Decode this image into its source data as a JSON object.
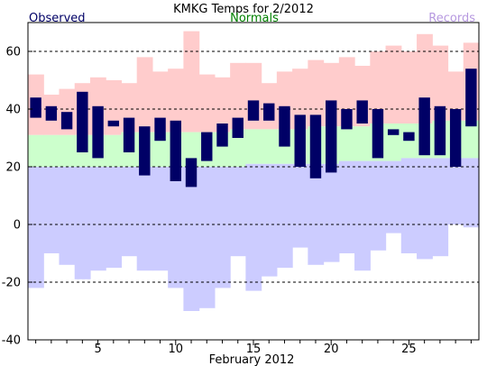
{
  "chart_data": {
    "type": "bar",
    "title": "KMKG Temps for 2/2012",
    "xlabel": "February 2012",
    "ylabel": "",
    "ylim": [
      -40,
      70
    ],
    "xlim": [
      0.5,
      29.5
    ],
    "yticks": [
      -40,
      -20,
      0,
      20,
      40,
      60
    ],
    "xticks": [
      5,
      10,
      15,
      20,
      25
    ],
    "grid": "dashed horizontal at 20-degree intervals",
    "legend": [
      {
        "name": "Observed",
        "color": "#000066",
        "placement": "top-left"
      },
      {
        "name": "Normals",
        "color": "#008000",
        "placement": "top-center"
      },
      {
        "name": "Records",
        "color": "#b799e0",
        "placement": "top-right"
      }
    ],
    "colors": {
      "observed": "#000066",
      "normals": "#ccffcc",
      "record_high_band": "#ffcccc",
      "record_low_band": "#ccccff",
      "grid": "#000000"
    },
    "days": [
      1,
      2,
      3,
      4,
      5,
      6,
      7,
      8,
      9,
      10,
      11,
      12,
      13,
      14,
      15,
      16,
      17,
      18,
      19,
      20,
      21,
      22,
      23,
      24,
      25,
      26,
      27,
      28,
      29
    ],
    "series": [
      {
        "name": "Observed",
        "kind": "range",
        "high": [
          44,
          41,
          39,
          46,
          41,
          36,
          37,
          34,
          37,
          36,
          23,
          32,
          35,
          37,
          43,
          42,
          41,
          38,
          38,
          43,
          40,
          43,
          40,
          33,
          32,
          44,
          41,
          40,
          54
        ],
        "low": [
          37,
          36,
          33,
          25,
          23,
          34,
          25,
          17,
          29,
          15,
          13,
          22,
          27,
          30,
          36,
          36,
          27,
          20,
          16,
          18,
          33,
          35,
          23,
          31,
          29,
          24,
          24,
          20,
          34
        ]
      },
      {
        "name": "Normals",
        "kind": "range",
        "high": [
          31,
          31,
          31,
          31,
          31,
          31,
          32,
          32,
          32,
          32,
          32,
          32,
          32,
          33,
          33,
          33,
          33,
          33,
          34,
          34,
          34,
          34,
          35,
          35,
          35,
          35,
          36,
          36,
          36
        ],
        "low": [
          20,
          20,
          20,
          20,
          20,
          20,
          20,
          20,
          20,
          20,
          20,
          20,
          20,
          20,
          21,
          21,
          21,
          21,
          21,
          21,
          22,
          22,
          22,
          22,
          23,
          23,
          23,
          23,
          23
        ]
      },
      {
        "name": "Record High",
        "kind": "band",
        "values": [
          52,
          45,
          47,
          49,
          51,
          50,
          49,
          58,
          53,
          54,
          67,
          52,
          51,
          56,
          56,
          49,
          53,
          54,
          57,
          56,
          58,
          55,
          60,
          62,
          60,
          66,
          62,
          53,
          63
        ]
      },
      {
        "name": "Record Low",
        "kind": "band",
        "values": [
          -22,
          -10,
          -14,
          -19,
          -16,
          -15,
          -11,
          -16,
          -16,
          -22,
          -30,
          -29,
          -22,
          -11,
          -23,
          -18,
          -15,
          -8,
          -14,
          -13,
          -10,
          -16,
          -9,
          -3,
          -10,
          -12,
          -11,
          0,
          -1
        ]
      }
    ]
  }
}
